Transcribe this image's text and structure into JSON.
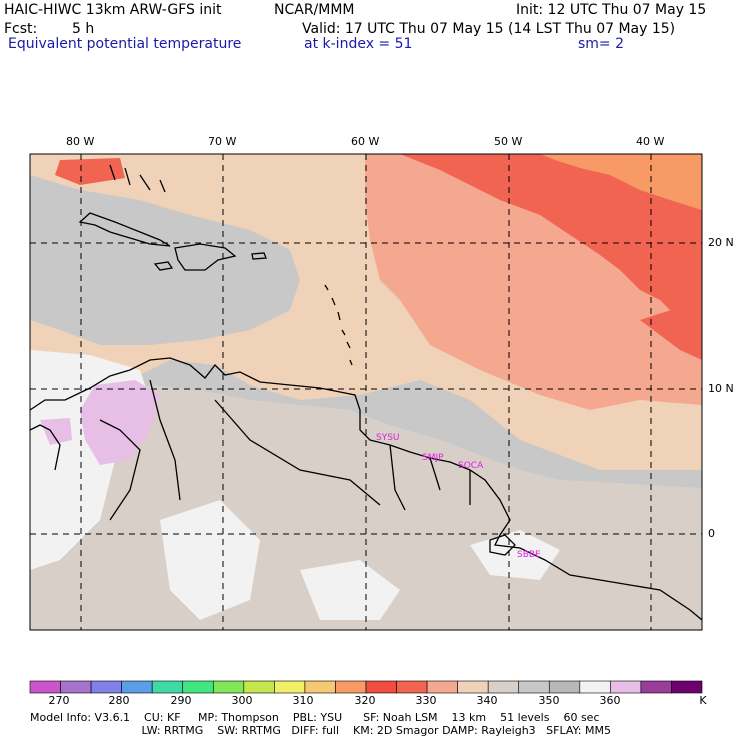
{
  "header": {
    "title_left": "HAIC-HIWC 13km ARW-GFS init",
    "title_org": "NCAR/MMM",
    "init": "Init: 12 UTC Thu 07 May 15",
    "fcst_label": "Fcst:",
    "fcst_value": "5 h",
    "valid": "Valid: 17 UTC Thu 07 May 15 (14 LST Thu 07 May 15)",
    "field": "Equivalent potential temperature",
    "level": "at k-index =  51",
    "smooth": "sm= 2"
  },
  "longitude_labels": [
    "80 W",
    "70 W",
    "60 W",
    "50 W",
    "40 W"
  ],
  "latitude_labels": [
    "20 N",
    "10 N",
    "0"
  ],
  "stations": [
    "SYSU",
    "SMJP",
    "SOCA",
    "SBBE"
  ],
  "colorbar": {
    "unit": "K",
    "labels": [
      "270",
      "280",
      "290",
      "300",
      "310",
      "320",
      "330",
      "340",
      "350",
      "360"
    ],
    "colors": [
      "#cc55cc",
      "#a673cc",
      "#8080e6",
      "#5c9ee6",
      "#40d9a6",
      "#40e680",
      "#80e65a",
      "#c6e64d",
      "#f0f066",
      "#f7c873",
      "#f79a66",
      "#f04d40",
      "#f26452",
      "#f5a890",
      "#f0d2b8",
      "#d8cfc8",
      "#c8c8c8",
      "#b8b8b8",
      "#f2f2f2",
      "#e6bee6",
      "#9a3c9a",
      "#6e006e"
    ]
  },
  "footer": {
    "line1": "Model Info: V3.6.1    CU: KF     MP: Thompson    PBL: YSU      SF: Noah LSM    13 km    51 levels    60 sec",
    "line2": "     LW: RRTMG    SW: RRTMG   DIFF: full    KM: 2D Smagor DAMP: Rayleigh3   SFLAY: MM5"
  }
}
